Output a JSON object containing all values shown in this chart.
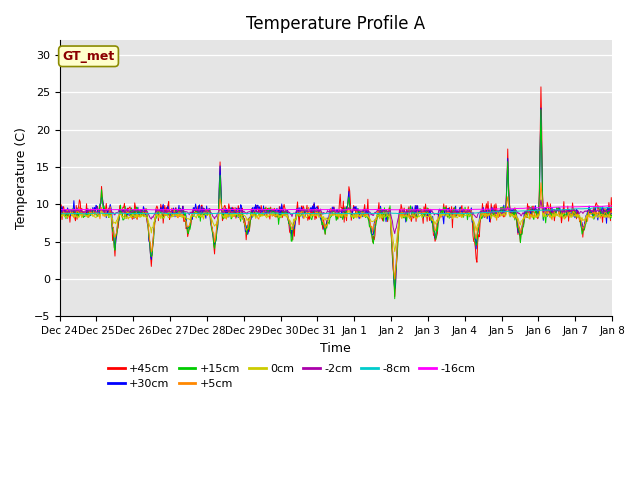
{
  "title": "Temperature Profile A",
  "xlabel": "Time",
  "ylabel": "Temperature (C)",
  "ylim": [
    -5,
    32
  ],
  "yticks": [
    -5,
    0,
    5,
    10,
    15,
    20,
    25,
    30
  ],
  "legend_label": "GT_met",
  "series_labels": [
    "+45cm",
    "+30cm",
    "+15cm",
    "+5cm",
    "0cm",
    "-2cm",
    "-8cm",
    "-16cm"
  ],
  "series_colors": [
    "#ff0000",
    "#0000ff",
    "#00cc00",
    "#ff8800",
    "#cccc00",
    "#aa00aa",
    "#00cccc",
    "#ff00ff"
  ],
  "n_points": 700,
  "x_start": 0,
  "x_end": 15,
  "xtick_positions": [
    0,
    1,
    2,
    3,
    4,
    5,
    6,
    7,
    8,
    9,
    10,
    11,
    12,
    13,
    14,
    15
  ],
  "xtick_labels": [
    "Dec 24",
    "Dec 25",
    "Dec 26",
    "Dec 27",
    "Dec 28",
    "Dec 29",
    "Dec 30",
    "Dec 31",
    "Jan 1",
    "Jan 2",
    "Jan 3",
    "Jan 4",
    "Jan 5",
    "Jan 6",
    "Jan 7",
    "Jan 8"
  ],
  "background_color": "#e5e5e5",
  "title_fontsize": 12,
  "axis_label_fontsize": 9
}
